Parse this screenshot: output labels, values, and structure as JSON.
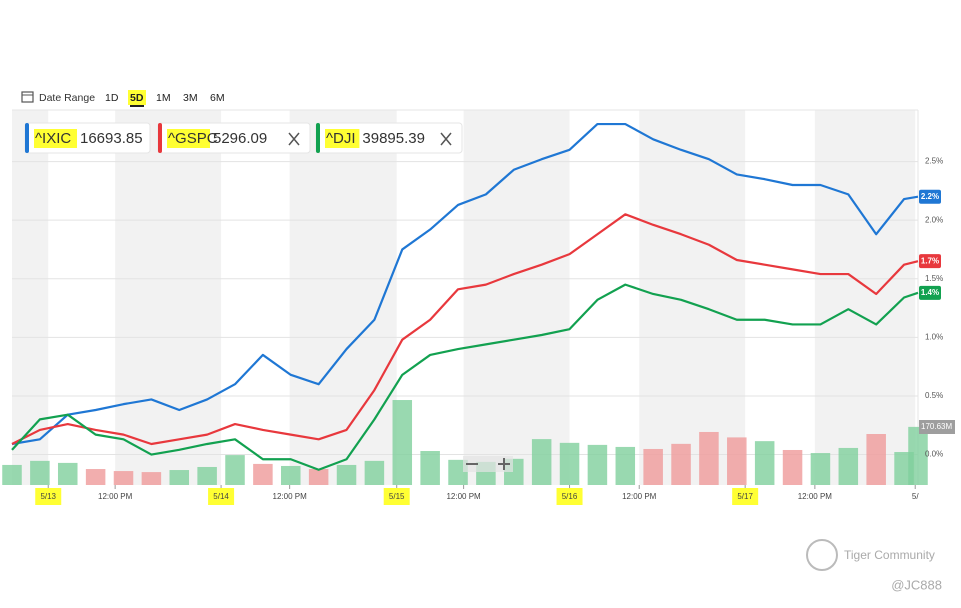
{
  "toolbar": {
    "date_range": "Date Range",
    "ranges": [
      "1D",
      "5D",
      "1M",
      "3M",
      "6M"
    ],
    "active": "5D"
  },
  "legend": [
    {
      "symbol": "^IXIC",
      "price": "16693.85",
      "removable": false
    },
    {
      "symbol": "^GSPC",
      "price": "5296.09",
      "removable": true
    },
    {
      "symbol": "^DJI",
      "price": "39895.39",
      "removable": true
    }
  ],
  "watermark": {
    "brand": "Tiger Community",
    "user": "@JC888"
  },
  "chart_data": {
    "type": "line",
    "x": [
      0,
      1,
      2,
      3,
      4,
      5,
      6,
      7,
      8,
      9,
      10,
      11,
      12,
      13,
      14,
      15,
      16,
      17,
      18,
      19,
      20,
      21,
      22,
      23,
      24,
      25,
      26,
      27,
      28,
      29,
      30,
      31,
      32,
      32.5
    ],
    "xlim": [
      0,
      32.5
    ],
    "xticks": [
      {
        "value": 1.3,
        "label": "5/13"
      },
      {
        "value": 3.7,
        "label": "12:00 PM"
      },
      {
        "value": 7.5,
        "label": "5/14"
      },
      {
        "value": 9.96,
        "label": "12:00 PM"
      },
      {
        "value": 13.8,
        "label": "5/15"
      },
      {
        "value": 16.2,
        "label": "12:00 PM"
      },
      {
        "value": 20.0,
        "label": "5/16"
      },
      {
        "value": 22.5,
        "label": "12:00 PM"
      },
      {
        "value": 26.3,
        "label": "5/17"
      },
      {
        "value": 28.8,
        "label": "12:00 PM"
      },
      {
        "value": 32.4,
        "label": "5/"
      }
    ],
    "highlighted_xticks": [
      0,
      2,
      4,
      6,
      8
    ],
    "ylim": [
      -0.26,
      2.94
    ],
    "yticks": [
      {
        "value": 0,
        "label": "0.0%"
      },
      {
        "value": 0.5,
        "label": "0.5%"
      },
      {
        "value": 1.0,
        "label": "1.0%"
      },
      {
        "value": 1.5,
        "label": "1.5%"
      },
      {
        "value": 2.0,
        "label": "2.0%"
      },
      {
        "value": 2.5,
        "label": "2.5%"
      }
    ],
    "series": [
      {
        "name": "^IXIC",
        "color": "#1f77d4",
        "end_label": "2.2%",
        "values": [
          0.09,
          0.13,
          0.34,
          0.38,
          0.43,
          0.47,
          0.38,
          0.47,
          0.6,
          0.85,
          0.68,
          0.6,
          0.9,
          1.15,
          1.75,
          1.92,
          2.13,
          2.22,
          2.43,
          2.52,
          2.6,
          2.82,
          2.82,
          2.69,
          2.6,
          2.52,
          2.39,
          2.35,
          2.3,
          2.3,
          2.22,
          1.88,
          2.18,
          2.2
        ]
      },
      {
        "name": "^GSPC",
        "color": "#e8383d",
        "end_label": "1.7%",
        "values": [
          0.09,
          0.21,
          0.26,
          0.21,
          0.17,
          0.09,
          0.13,
          0.17,
          0.26,
          0.21,
          0.17,
          0.13,
          0.21,
          0.55,
          0.98,
          1.15,
          1.41,
          1.45,
          1.54,
          1.62,
          1.71,
          1.88,
          2.05,
          1.96,
          1.88,
          1.79,
          1.66,
          1.62,
          1.58,
          1.54,
          1.54,
          1.37,
          1.62,
          1.65
        ]
      },
      {
        "name": "^DJI",
        "color": "#12a150",
        "end_label": "1.4%",
        "values": [
          0.04,
          0.3,
          0.34,
          0.17,
          0.13,
          0,
          0.04,
          0.09,
          0.13,
          -0.04,
          -0.04,
          -0.13,
          -0.04,
          0.3,
          0.68,
          0.85,
          0.9,
          0.94,
          0.98,
          1.02,
          1.07,
          1.32,
          1.45,
          1.37,
          1.32,
          1.24,
          1.15,
          1.15,
          1.11,
          1.11,
          1.24,
          1.11,
          1.34,
          1.38
        ]
      }
    ],
    "volume": [
      59,
      71,
      65,
      47,
      41,
      38,
      44,
      53,
      88,
      62,
      56,
      47,
      59,
      71,
      250,
      100,
      74,
      68,
      77,
      135,
      124,
      118,
      112,
      106,
      121,
      156,
      140,
      129,
      103,
      94,
      109,
      150,
      97,
      171
    ],
    "volume_label": {
      "value": 170.63,
      "label": "170.63M"
    },
    "grid": true
  }
}
